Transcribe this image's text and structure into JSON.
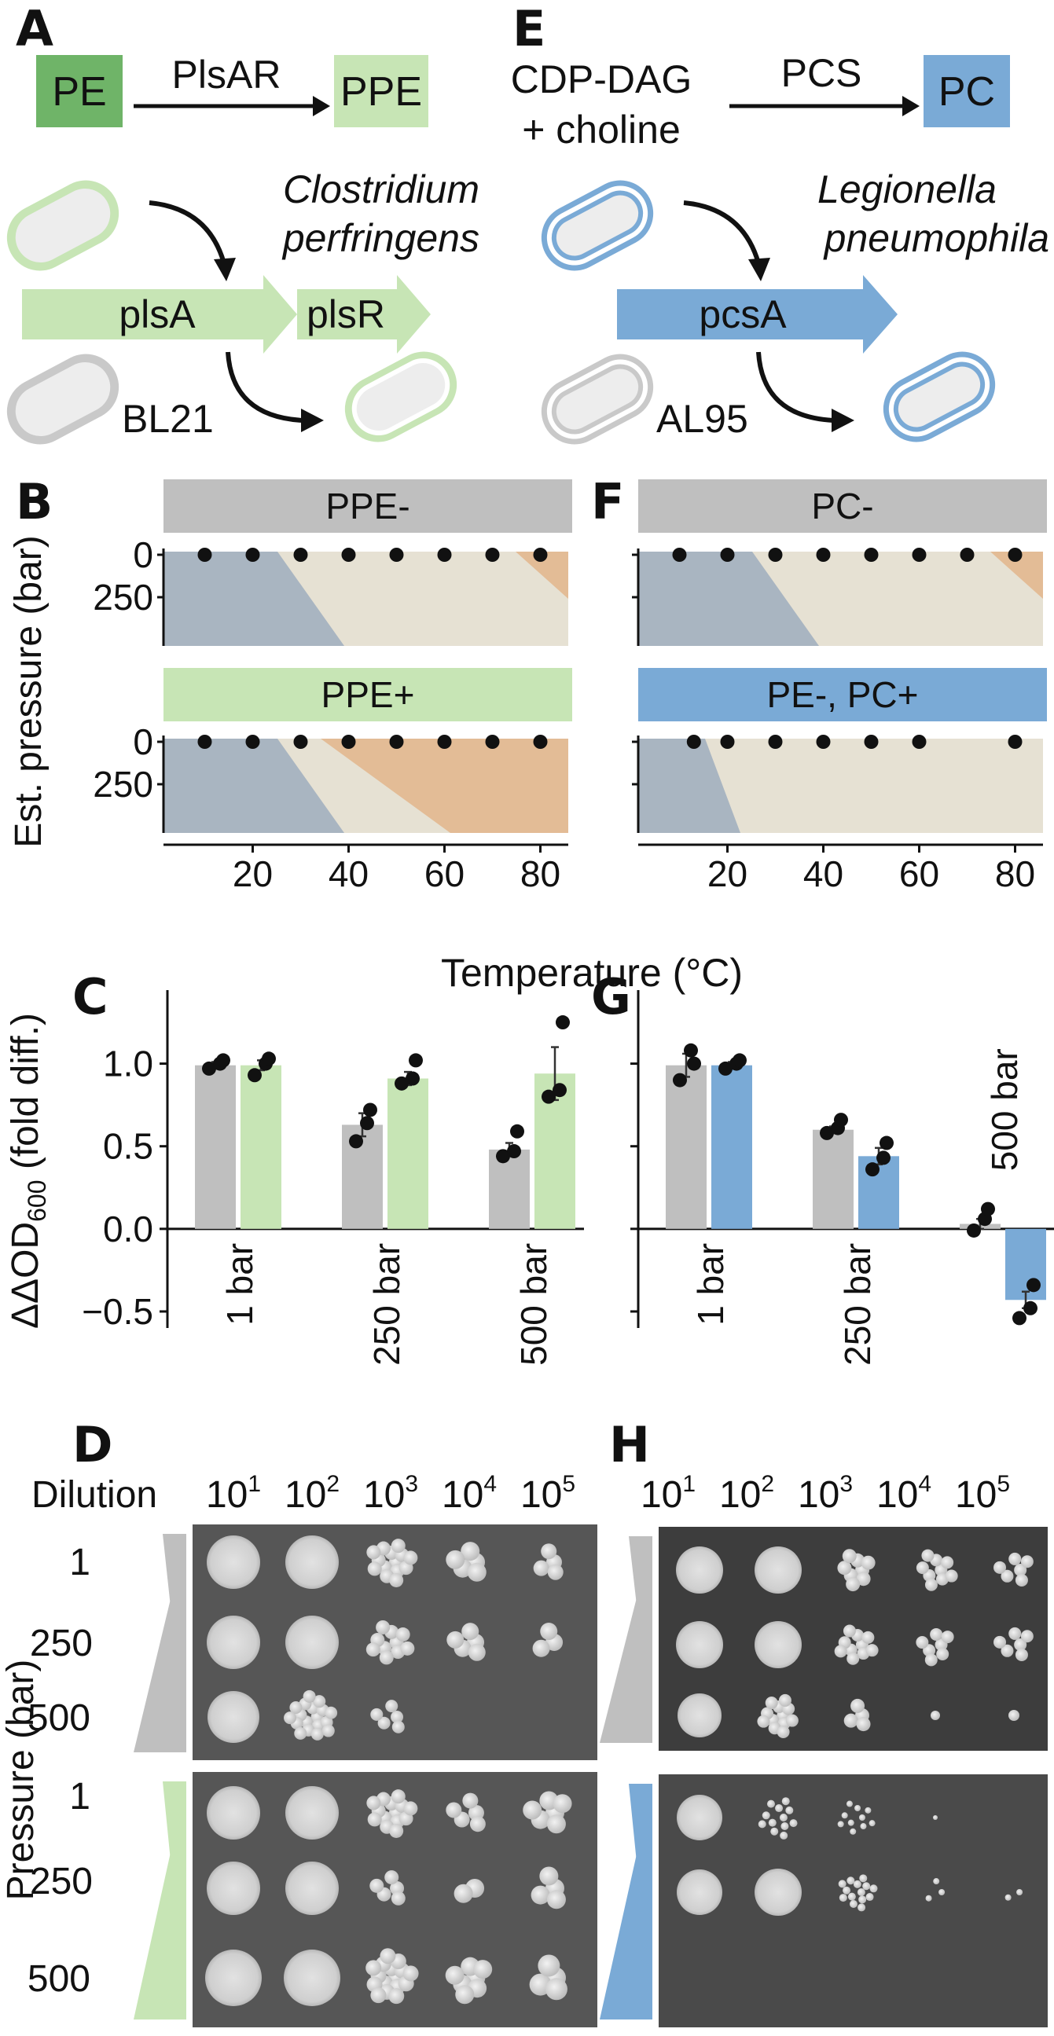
{
  "panel_a": {
    "label": "A",
    "substrate": "PE",
    "enzyme": "PlsAR",
    "product": "PPE",
    "organism_line1": "Clostridium",
    "organism_line2": "perfringens",
    "gene1": "plsA",
    "gene2": "plsR",
    "strain": "BL21"
  },
  "panel_e": {
    "label": "E",
    "substrate_line1": "CDP-DAG",
    "substrate_line2": "+ choline",
    "enzyme": "PCS",
    "product": "PC",
    "organism_line1": "Legionella",
    "organism_line2": "pneumophila",
    "gene": "pcsA",
    "strain": "AL95"
  },
  "phase": {
    "label_b": "B",
    "label_f": "F",
    "title_b_top": "PPE-",
    "title_b_bottom": "PPE+",
    "title_f_top": "PC-",
    "title_f_bottom": "PE-, PC+",
    "ylabel": "Est. pressure (bar)",
    "xlabel": "Temperature (°C)",
    "yticks": [
      "0",
      "250"
    ],
    "xticks": [
      "20",
      "40",
      "60",
      "80"
    ],
    "dots_b_top": [
      10,
      20,
      30,
      40,
      50,
      60,
      70,
      80
    ],
    "dots_b_bottom": [
      10,
      20,
      30,
      40,
      50,
      60,
      70,
      80
    ],
    "dots_f_top": [
      10,
      20,
      30,
      40,
      50,
      60,
      70,
      80
    ],
    "dots_f_bottom": [
      13,
      20,
      30,
      40,
      50,
      60,
      80
    ],
    "colors": {
      "blue_phase": "#a9b5c1",
      "beige_phase": "#e6e1d3",
      "orange_phase": "#e3bc96",
      "gray": "#bfbfbf",
      "green": "#c7e5b5",
      "blue": "#7aaad6",
      "dark_green": "#6fb468"
    }
  },
  "chart_data": [
    {
      "type": "bar",
      "panel": "C",
      "ylabel": "ΔΔOD600 (fold diff.)",
      "ylim": [
        -0.6,
        1.35
      ],
      "yticks": [
        "1.0",
        "0.5",
        "0.0",
        "−0.5"
      ],
      "categories": [
        "1 bar",
        "250 bar",
        "500 bar"
      ],
      "series": [
        {
          "color": "#bfbfbf",
          "values": [
            0.99,
            0.63,
            0.48
          ],
          "errors": [
            0.02,
            0.07,
            0.04
          ],
          "points": [
            [
              0.97,
              1.0,
              1.02
            ],
            [
              0.53,
              0.64,
              0.72
            ],
            [
              0.44,
              0.47,
              0.59
            ]
          ]
        },
        {
          "color": "#c7e5b5",
          "values": [
            0.99,
            0.91,
            0.94
          ],
          "errors": [
            0.03,
            0.04,
            0.16
          ],
          "points": [
            [
              0.93,
              1.0,
              1.03
            ],
            [
              0.88,
              0.91,
              1.02
            ],
            [
              0.8,
              0.84,
              1.25
            ]
          ]
        }
      ]
    },
    {
      "type": "bar",
      "panel": "G",
      "ylim": [
        -0.6,
        1.35
      ],
      "categories": [
        "1 bar",
        "250 bar",
        "500 bar"
      ],
      "series": [
        {
          "color": "#bfbfbf",
          "values": [
            0.99,
            0.6,
            0.03
          ],
          "errors": [
            0.07,
            0.02,
            0.03
          ],
          "points": [
            [
              0.9,
              1.08,
              1.0
            ],
            [
              0.58,
              0.61,
              0.66
            ],
            [
              -0.01,
              0.06,
              0.12
            ]
          ]
        },
        {
          "color": "#7aaad6",
          "values": [
            0.99,
            0.44,
            -0.43
          ],
          "errors": [
            0.02,
            0.05,
            0.05
          ],
          "points": [
            [
              0.97,
              1.0,
              1.02
            ],
            [
              0.36,
              0.43,
              0.52
            ],
            [
              -0.54,
              -0.48,
              -0.34
            ]
          ]
        }
      ]
    }
  ],
  "plates": {
    "label_d": "D",
    "label_h": "H",
    "dilution_label": "Dilution",
    "dilutions": [
      {
        "base": "10",
        "exp": "1"
      },
      {
        "base": "10",
        "exp": "2"
      },
      {
        "base": "10",
        "exp": "3"
      },
      {
        "base": "10",
        "exp": "4"
      },
      {
        "base": "10",
        "exp": "5"
      }
    ],
    "pressure_label": "Pressure (bar)",
    "pressures": [
      "1",
      "250",
      "500",
      "1",
      "250",
      "500"
    ]
  }
}
